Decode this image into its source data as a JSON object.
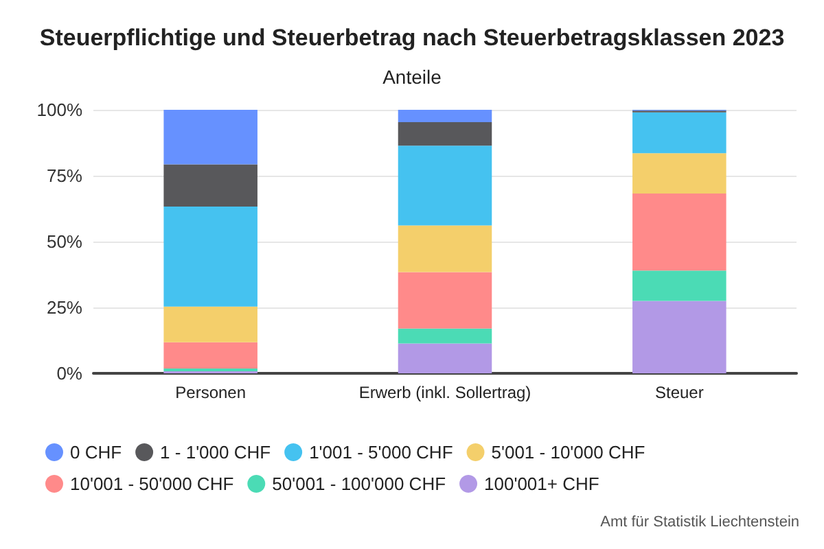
{
  "chart_data": {
    "type": "bar",
    "stacked": true,
    "title": "Steuerpflichtige und Steuerbetrag nach Steuerbetragsklassen 2023",
    "subtitle": "Anteile",
    "categories": [
      "Personen",
      "Erwerb (inkl. Sollertrag)",
      "Steuer"
    ],
    "series": [
      {
        "name": "100'001+ CHF",
        "color": "#b299e6",
        "values": [
          0.8,
          11.3,
          27.5
        ]
      },
      {
        "name": "50'001 - 100'000 CHF",
        "color": "#4bdbb5",
        "values": [
          1,
          5.7,
          11.5
        ]
      },
      {
        "name": "10'001 - 50'000 CHF",
        "color": "#ff8a8a",
        "values": [
          10,
          21.4,
          29.2
        ]
      },
      {
        "name": "5'001 - 10'000 CHF",
        "color": "#f4cf6b",
        "values": [
          13.5,
          17.7,
          15.3
        ]
      },
      {
        "name": "1'001 - 5'000 CHF",
        "color": "#45c2f0",
        "values": [
          38,
          30.3,
          15.5
        ]
      },
      {
        "name": "1 - 1'000 CHF",
        "color": "#58585b",
        "values": [
          16,
          8.9,
          0.7
        ]
      },
      {
        "name": "0 CHF",
        "color": "#6691ff",
        "values": [
          20.7,
          4.7,
          0.3
        ]
      }
    ],
    "ylim": [
      0,
      100
    ],
    "yticks": [
      {
        "value": 0,
        "label": "0%"
      },
      {
        "value": 25,
        "label": "25%"
      },
      {
        "value": 50,
        "label": "50%"
      },
      {
        "value": 75,
        "label": "75%"
      },
      {
        "value": 100,
        "label": "100%"
      }
    ],
    "grid": "y",
    "legend": "bottom",
    "annotations": [
      "Amt für Statistik Liechtenstein"
    ]
  }
}
